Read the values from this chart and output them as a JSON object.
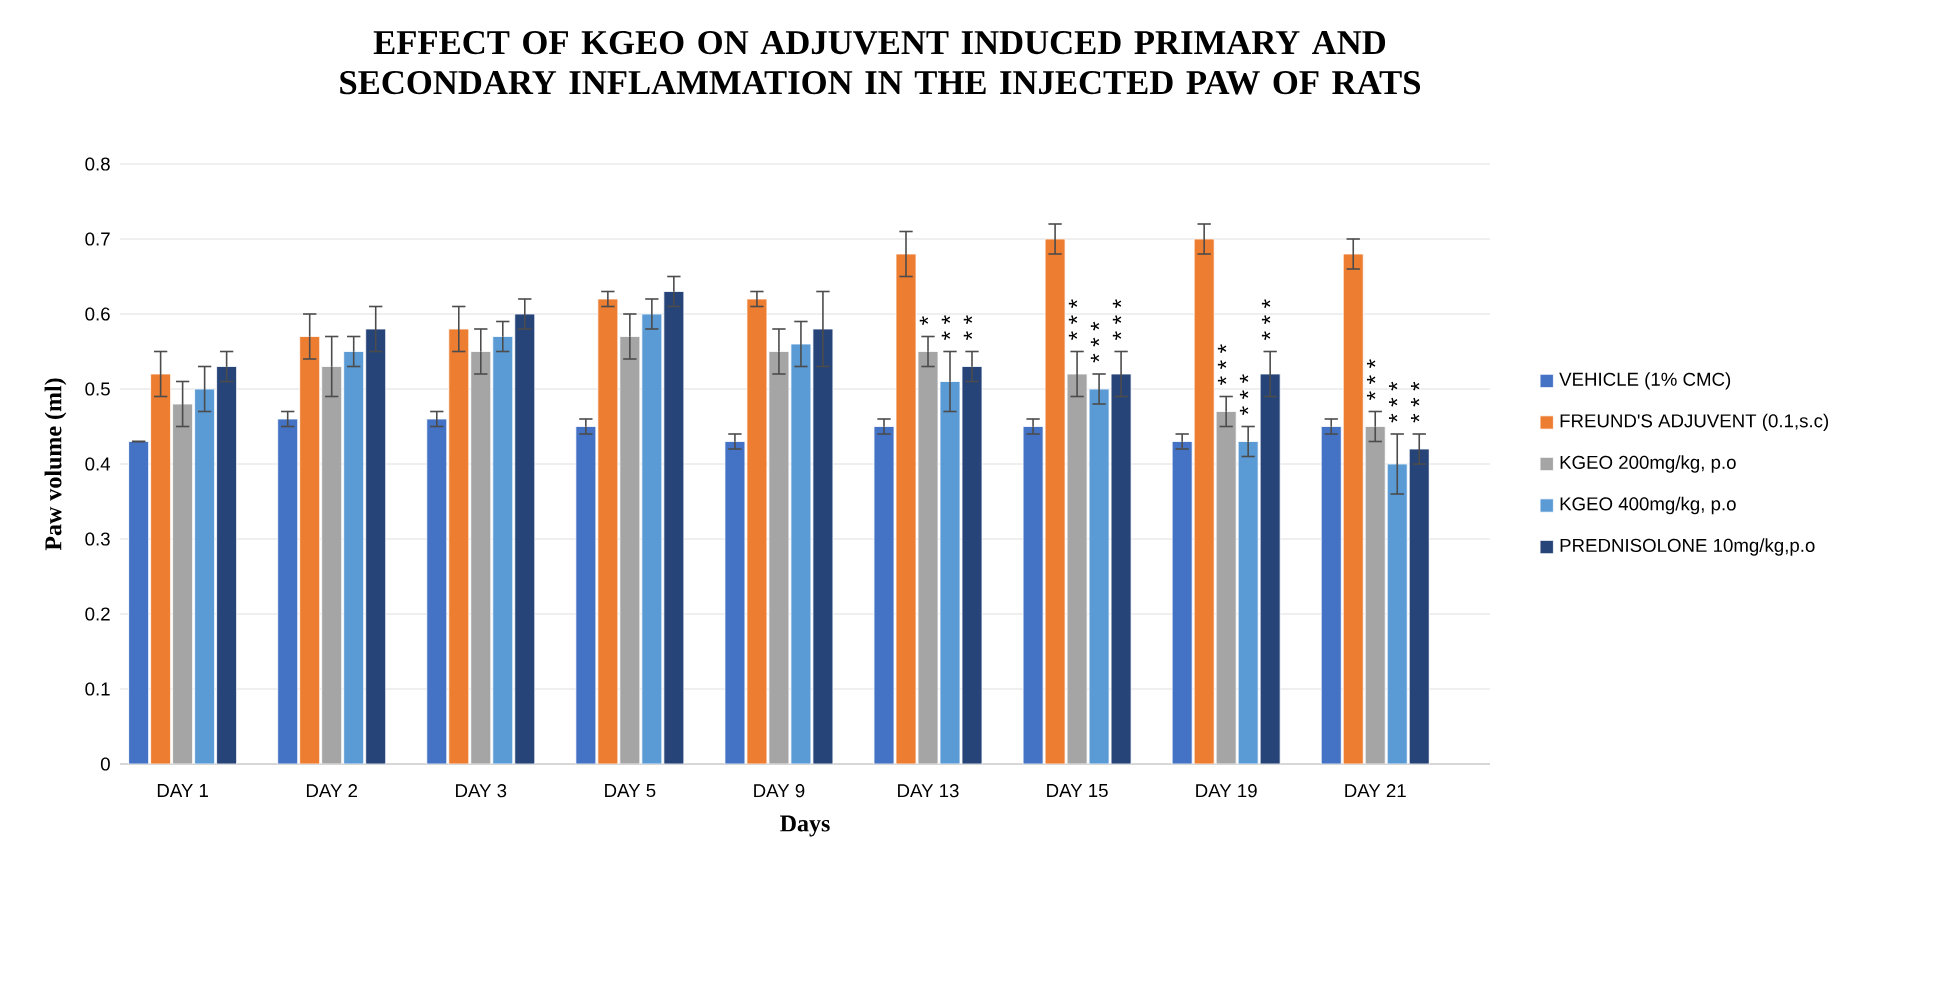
{
  "chart_data": {
    "type": "bar",
    "title": "EFFECT OF KGEO ON ADJUVENT INDUCED PRIMARY AND SECONDARY INFLAMMATION IN THE INJECTED PAW OF RATS",
    "xlabel": "Days",
    "ylabel": "Paw volume (ml)",
    "categories": [
      "DAY 1",
      "DAY 2",
      "DAY 3",
      "DAY 5",
      "DAY 9",
      "DAY 13",
      "DAY 15",
      "DAY 19",
      "DAY 21"
    ],
    "series": [
      {
        "name": "VEHICLE (1% CMC)",
        "color": "#4472c4",
        "values": [
          0.43,
          0.46,
          0.46,
          0.45,
          0.43,
          0.45,
          0.45,
          0.43,
          0.45
        ],
        "errors": [
          null,
          0.01,
          0.01,
          0.01,
          0.01,
          0.01,
          0.01,
          0.01,
          0.01
        ]
      },
      {
        "name": "FREUND'S ADJUVENT (0.1,s.c)",
        "color": "#ed7d31",
        "values": [
          0.52,
          0.57,
          0.58,
          0.62,
          0.62,
          0.68,
          0.7,
          0.7,
          0.68
        ],
        "errors": [
          0.03,
          0.03,
          0.03,
          0.01,
          0.01,
          0.03,
          0.02,
          0.02,
          0.02
        ]
      },
      {
        "name": "KGEO 200mg/kg, p.o",
        "color": "#a5a5a5",
        "values": [
          0.48,
          0.53,
          0.55,
          0.57,
          0.55,
          0.55,
          0.52,
          0.47,
          0.45
        ],
        "errors": [
          0.03,
          0.04,
          0.03,
          0.03,
          0.03,
          0.02,
          0.03,
          0.02,
          0.02
        ]
      },
      {
        "name": "KGEO 400mg/kg, p.o",
        "color": "#5b9bd5",
        "values": [
          0.5,
          0.55,
          0.57,
          0.6,
          0.56,
          0.51,
          0.5,
          0.43,
          0.4
        ],
        "errors": [
          0.03,
          0.02,
          0.02,
          0.02,
          0.03,
          0.04,
          0.02,
          0.02,
          0.04
        ]
      },
      {
        "name": "PREDNISOLONE 10mg/kg,p.o",
        "color": "#264478",
        "values": [
          0.53,
          0.58,
          0.6,
          0.63,
          0.58,
          0.53,
          0.52,
          0.52,
          0.42
        ],
        "errors": [
          0.02,
          0.03,
          0.02,
          0.02,
          0.05,
          0.02,
          0.03,
          0.03,
          0.02
        ]
      }
    ],
    "ylim": [
      0,
      0.8
    ],
    "yticks": [
      0,
      0.1,
      0.2,
      0.3,
      0.4,
      0.5,
      0.6,
      0.7,
      0.8
    ],
    "grid": "y",
    "legend": "right",
    "annotations": [
      "*",
      "* *",
      "* *",
      "* * *",
      "* * *",
      "* * *",
      "* * *",
      "* * *",
      "* * *",
      "* * *",
      "* * *",
      "* * *"
    ]
  }
}
